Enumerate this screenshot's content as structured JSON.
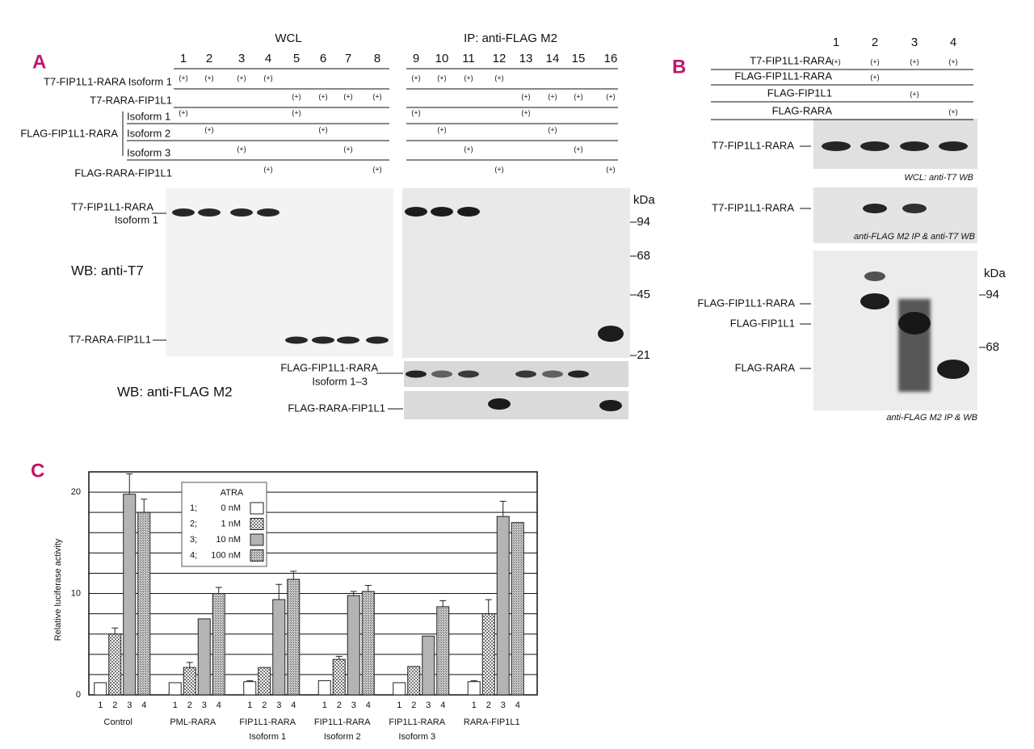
{
  "panel_a": {
    "label": "A",
    "wcl_header": "WCL",
    "ip_header": "IP: anti-FLAG M2",
    "lanes": [
      "1",
      "2",
      "3",
      "4",
      "5",
      "6",
      "7",
      "8",
      "9",
      "10",
      "11",
      "12",
      "13",
      "14",
      "15",
      "16"
    ],
    "group_label": "FLAG-FIP1L1-RARA",
    "rows": [
      {
        "label": "T7-FIP1L1-RARA Isoform 1",
        "cells": [
          "(+)",
          "(+)",
          "(+)",
          "(+)",
          null,
          null,
          null,
          null,
          "(+)",
          "(+)",
          "(+)",
          "(+)",
          null,
          null,
          null,
          null
        ]
      },
      {
        "label": "T7-RARA-FIP1L1",
        "cells": [
          null,
          null,
          null,
          null,
          "(+)",
          "(+)",
          "(+)",
          "(+)",
          null,
          null,
          null,
          null,
          "(+)",
          "(+)",
          "(+)",
          "(+)"
        ]
      },
      {
        "label": "Isoform 1",
        "cells": [
          "(+)",
          null,
          null,
          null,
          "(+)",
          null,
          null,
          null,
          "(+)",
          null,
          null,
          null,
          "(+)",
          null,
          null,
          null
        ]
      },
      {
        "label": "Isoform 2",
        "cells": [
          null,
          "(+)",
          null,
          null,
          null,
          "(+)",
          null,
          null,
          null,
          "(+)",
          null,
          null,
          null,
          "(+)",
          null,
          null
        ]
      },
      {
        "label": "Isoform 3",
        "cells": [
          null,
          null,
          "(+)",
          null,
          null,
          null,
          "(+)",
          null,
          null,
          null,
          "(+)",
          null,
          null,
          null,
          "(+)",
          null
        ]
      },
      {
        "label": "FLAG-RARA-FIP1L1",
        "cells": [
          null,
          null,
          null,
          "(+)",
          null,
          null,
          null,
          "(+)",
          null,
          null,
          null,
          "(+)",
          null,
          null,
          null,
          "(+)"
        ]
      }
    ],
    "blot_labels": {
      "t7_fip_rara": "T7-FIP1L1-RARA",
      "t7_fip_rara_iso": "Isoform 1",
      "wb_t7": "WB: anti-T7",
      "t7_rara_fip": "T7-RARA-FIP1L1",
      "wb_flag": "WB: anti-FLAG M2",
      "flag_fip_rara": "FLAG-FIP1L1-RARA",
      "flag_fip_rara_iso": "Isoform 1–3",
      "flag_rara_fip": "FLAG-RARA-FIP1L1"
    },
    "kda": "kDa",
    "markers": [
      "–94",
      "–68",
      "–45",
      "–21"
    ]
  },
  "panel_b": {
    "label": "B",
    "lanes": [
      "1",
      "2",
      "3",
      "4"
    ],
    "rows": [
      {
        "label": "T7-FIP1L1-RARA",
        "cells": [
          "(+)",
          "(+)",
          "(+)",
          "(+)"
        ]
      },
      {
        "label": "FLAG-FIP1L1-RARA",
        "cells": [
          null,
          "(+)",
          null,
          null
        ]
      },
      {
        "label": "FLAG-FIP1L1",
        "cells": [
          null,
          null,
          "(+)",
          null
        ]
      },
      {
        "label": "FLAG-RARA",
        "cells": [
          null,
          null,
          null,
          "(+)"
        ]
      }
    ],
    "blot1_label": "T7-FIP1L1-RARA",
    "blot1_caption": "WCL: anti-T7 WB",
    "blot2_label": "T7-FIP1L1-RARA",
    "blot2_caption": "anti-FLAG M2 IP & anti-T7 WB",
    "blot3_labels": [
      "FLAG-FIP1L1-RARA",
      "FLAG-FIP1L1",
      "FLAG-RARA"
    ],
    "blot3_caption": "anti-FLAG M2 IP & WB",
    "kda": "kDa",
    "markers": [
      "–94",
      "–68"
    ]
  },
  "chart_data": {
    "type": "bar",
    "panel_label": "C",
    "ylabel": "Relative luciferase activity",
    "categories": [
      "Control",
      "PML-RARA",
      "FIP1L1-RARA",
      "FIP1L1-RARA",
      "FIP1L1-RARA",
      "RARA-FIP1L1"
    ],
    "category_sublabels": [
      null,
      null,
      "Isoform 1",
      "Isoform 2",
      "Isoform 3",
      null
    ],
    "legend_title": "ATRA",
    "series": [
      {
        "key": "1;",
        "name": "0 nM",
        "label": "1",
        "color": "#ffffff",
        "pattern": null,
        "values": [
          1.2,
          1.2,
          1.3,
          1.4,
          1.2,
          1.3
        ],
        "errors": [
          null,
          null,
          0.1,
          null,
          null,
          0.1
        ]
      },
      {
        "key": "2;",
        "name": "1 nM",
        "label": "2",
        "color": "#e8e8e8",
        "pattern": "checker",
        "values": [
          6.0,
          2.7,
          2.7,
          3.5,
          2.8,
          8.0
        ],
        "errors": [
          0.6,
          0.5,
          null,
          0.3,
          null,
          1.4
        ]
      },
      {
        "key": "3;",
        "name": "10 nM",
        "label": "3",
        "color": "#b4b4b4",
        "pattern": null,
        "values": [
          19.8,
          7.5,
          9.4,
          9.8,
          5.8,
          17.6
        ],
        "errors": [
          2.0,
          null,
          1.5,
          0.4,
          null,
          1.5
        ]
      },
      {
        "key": "4;",
        "name": "100 nM",
        "label": "4",
        "color": "#bdbdbd",
        "pattern": "hatch",
        "values": [
          18.0,
          10.0,
          11.4,
          10.2,
          8.7,
          17.0
        ],
        "errors": [
          1.3,
          0.6,
          0.8,
          0.6,
          0.6,
          null
        ]
      }
    ],
    "ylim": [
      0,
      22
    ],
    "yticks": [
      0,
      10,
      20
    ],
    "minor_yticks": [
      2,
      4,
      6,
      8,
      12,
      14,
      16,
      18
    ],
    "grid": true
  }
}
